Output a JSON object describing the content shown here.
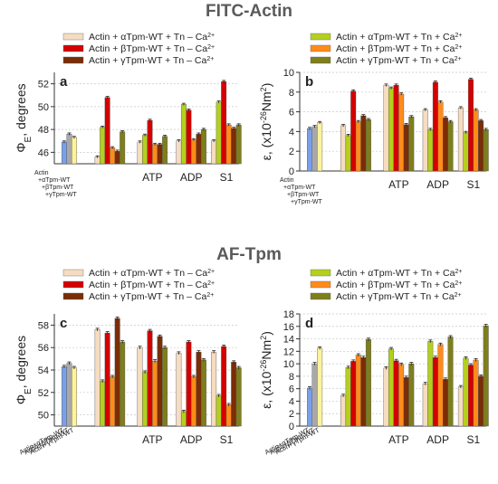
{
  "figure": {
    "title_top": "FITC-Actin",
    "title_bottom": "AF-Tpm"
  },
  "colors": {
    "wt_alpha": "#7aa0e8",
    "wt_beta": "#a8a8a8",
    "wt_gamma": "#fff39a",
    "minus_alpha": "#f6dcc0",
    "minus_beta": "#d40000",
    "minus_gamma": "#7a2d06",
    "plus_alpha": "#b5cf1e",
    "plus_beta": "#ff8c1a",
    "plus_gamma": "#7e7e1c"
  },
  "legends": {
    "minus": [
      "Actin + αTpm-WT + Tn – Ca",
      "Actin + βTpm-WT + Tn – Ca",
      "Actin + γTpm-WT + Tn – Ca"
    ],
    "plus": [
      "Actin + αTpm-WT + Tn + Ca",
      "Actin + βTpm-WT + Tn + Ca",
      "Actin + γTpm-WT + Tn + Ca"
    ],
    "superscript": "2+"
  },
  "chart_data": [
    {
      "panel": "a",
      "type": "bar",
      "ylabel": "Φ",
      "ylabel_sub": "E",
      "ylabel_rest": ", degrees",
      "ylim": [
        45,
        53
      ],
      "yticks": [
        46,
        48,
        50,
        52
      ],
      "xlabels_groups": [
        "ATP",
        "ADP",
        "S1"
      ],
      "wt_labels": [
        "Actin",
        "+αTpm-WT",
        "+βTpm-WT",
        "+γTpm-WT"
      ],
      "wt": {
        "alpha": 46.9,
        "beta": 47.6,
        "gamma": 47.3
      },
      "groups": [
        {
          "alpha": 45.6,
          "beta": 50.8,
          "gamma": 46.1
        },
        {
          "alpha": 46.9,
          "beta": 48.8,
          "gamma": 46.7
        },
        {
          "alpha": 47.0,
          "beta": 49.7,
          "gamma": 47.6
        },
        {
          "alpha": 47.0,
          "beta": 52.2,
          "gamma": 48.1
        }
      ],
      "groups_plus": [
        {
          "alpha": 48.2,
          "beta": 46.4,
          "gamma": 47.8
        },
        {
          "alpha": 47.5,
          "beta": 46.7,
          "gamma": 47.4
        },
        {
          "alpha": 50.2,
          "beta": 47.1,
          "gamma": 48.0
        },
        {
          "alpha": 50.4,
          "beta": 48.4,
          "gamma": 48.4
        }
      ]
    },
    {
      "panel": "b",
      "type": "bar",
      "ylabel": "ε, (x10",
      "ylabel_sup": "-26",
      "ylabel_rest": "Nm",
      "ylabel_sup2": "2",
      "ylabel_close": ")",
      "ylim": [
        0,
        10
      ],
      "yticks": [
        0,
        2,
        4,
        6,
        8,
        10
      ],
      "xlabels_groups": [
        "ATP",
        "ADP",
        "S1"
      ],
      "wt_labels": [
        "Actin",
        "+αTpm-WT",
        "+βTpm-WT",
        "+γTpm-WT"
      ],
      "wt": {
        "alpha": 4.3,
        "beta": 4.5,
        "gamma": 4.9
      },
      "groups": [
        {
          "alpha": 4.6,
          "beta": 8.1,
          "gamma": 5.6
        },
        {
          "alpha": 8.7,
          "beta": 8.7,
          "gamma": 4.7
        },
        {
          "alpha": 6.2,
          "beta": 9.0,
          "gamma": 5.4
        },
        {
          "alpha": 6.4,
          "beta": 9.3,
          "gamma": 5.1
        }
      ],
      "groups_plus": [
        {
          "alpha": 3.6,
          "beta": 5.0,
          "gamma": 5.2
        },
        {
          "alpha": 8.4,
          "beta": 7.8,
          "gamma": 5.5
        },
        {
          "alpha": 4.2,
          "beta": 7.0,
          "gamma": 5.0
        },
        {
          "alpha": 3.9,
          "beta": 6.2,
          "gamma": 4.2
        }
      ]
    },
    {
      "panel": "c",
      "type": "bar",
      "ylabel": "Φ",
      "ylabel_sub": "E",
      "ylabel_rest": ", degrees",
      "ylim": [
        49,
        59
      ],
      "yticks": [
        50,
        52,
        54,
        56,
        58
      ],
      "xlabels_groups": [
        "ATP",
        "ADP",
        "S1"
      ],
      "wt_labels": [
        "Actin+αTpm-WT",
        "Actin+βTpm-WT",
        "Actin+γTpm-WT"
      ],
      "wt": {
        "alpha": 54.3,
        "beta": 54.6,
        "gamma": 54.2
      },
      "groups": [
        {
          "alpha": 57.6,
          "beta": 57.3,
          "gamma": 58.6
        },
        {
          "alpha": 56.0,
          "beta": 57.5,
          "gamma": 57.0
        },
        {
          "alpha": 55.5,
          "beta": 56.5,
          "gamma": 55.6
        },
        {
          "alpha": 55.6,
          "beta": 56.1,
          "gamma": 54.7
        }
      ],
      "groups_plus": [
        {
          "alpha": 53.0,
          "beta": 53.4,
          "gamma": 56.5
        },
        {
          "alpha": 53.8,
          "beta": 54.8,
          "gamma": 56.0
        },
        {
          "alpha": 50.3,
          "beta": 53.4,
          "gamma": 54.9
        },
        {
          "alpha": 51.7,
          "beta": 50.9,
          "gamma": 54.2
        }
      ]
    },
    {
      "panel": "d",
      "type": "bar",
      "ylabel": "ε, (x10",
      "ylabel_sup": "-26",
      "ylabel_rest": "Nm",
      "ylabel_sup2": "2",
      "ylabel_close": ")",
      "ylim": [
        0,
        18
      ],
      "yticks": [
        0,
        2,
        4,
        6,
        8,
        10,
        12,
        14,
        16,
        18
      ],
      "xlabels_groups": [
        "ATP",
        "ADP",
        "S1"
      ],
      "wt_labels": [
        "Actin+αTpm-WT",
        "Actin+βTpm-WT",
        "Actin+γTpm-WT"
      ],
      "wt": {
        "alpha": 6.1,
        "beta": 10.0,
        "gamma": 12.5
      },
      "groups": [
        {
          "alpha": 4.9,
          "beta": 10.4,
          "gamma": 11.0
        },
        {
          "alpha": 9.3,
          "beta": 10.5,
          "gamma": 7.8
        },
        {
          "alpha": 6.8,
          "beta": 11.0,
          "gamma": 7.5
        },
        {
          "alpha": 6.3,
          "beta": 9.8,
          "gamma": 8.0
        }
      ],
      "groups_plus": [
        {
          "alpha": 9.4,
          "beta": 11.4,
          "gamma": 13.9
        },
        {
          "alpha": 12.4,
          "beta": 9.9,
          "gamma": 10.0
        },
        {
          "alpha": 13.6,
          "beta": 13.1,
          "gamma": 14.3
        },
        {
          "alpha": 10.9,
          "beta": 10.6,
          "gamma": 16.1
        }
      ]
    }
  ]
}
